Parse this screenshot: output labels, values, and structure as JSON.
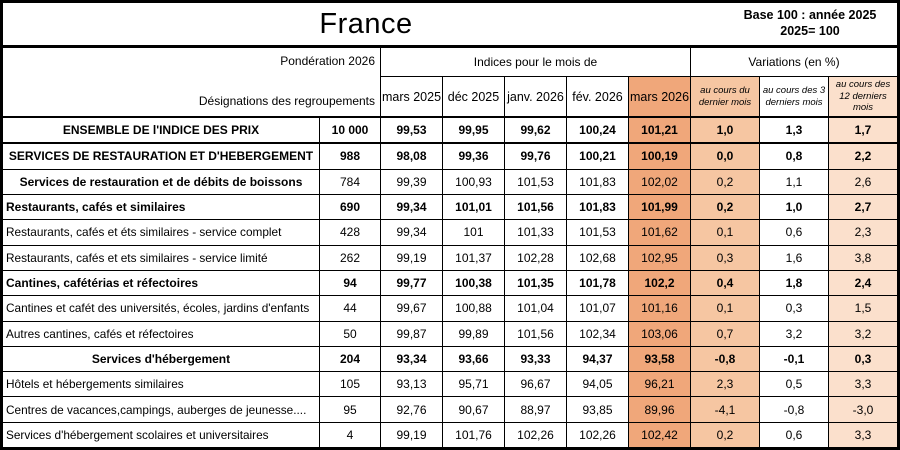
{
  "title": "France",
  "base_note": {
    "line1": "Base 100 : année 2025",
    "line2": "2025= 100"
  },
  "header": {
    "ponderation": "Pondération 2026",
    "designations": "Désignations des regroupements",
    "indices_group": "Indices pour le mois de",
    "variations_group": "Variations (en %)",
    "months": [
      "mars 2025",
      "déc 2025",
      "janv. 2026",
      "fév. 2026",
      "mars 2026"
    ],
    "variation_cols": [
      "au cours du dernier mois",
      "au cours des 3 derniers mois",
      "au cours des 12 derniers mois"
    ]
  },
  "colors": {
    "highlight_strong": "#F0A77A",
    "highlight_medium": "#F6C6A2",
    "highlight_light": "#FBE0CC"
  },
  "rows": [
    {
      "label": "ENSEMBLE DE l'INDICE DES PRIX",
      "pond": "10 000",
      "indices": [
        "99,53",
        "99,95",
        "99,62",
        "100,24",
        "101,21"
      ],
      "variations": [
        "1,0",
        "1,3",
        "1,7"
      ],
      "label_bold": true,
      "values_bold": true,
      "align": "center"
    },
    {
      "label": "SERVICES DE RESTAURATION ET D'HEBERGEMENT",
      "pond": "988",
      "indices": [
        "98,08",
        "99,36",
        "99,76",
        "100,21",
        "100,19"
      ],
      "variations": [
        "0,0",
        "0,8",
        "2,2"
      ],
      "label_bold": true,
      "values_bold": true,
      "align": "center"
    },
    {
      "label": "Services de restauration et de débits de boissons",
      "pond": "784",
      "indices": [
        "99,39",
        "100,93",
        "101,53",
        "101,83",
        "102,02"
      ],
      "variations": [
        "0,2",
        "1,1",
        "2,6"
      ],
      "label_bold": true,
      "values_bold": false,
      "align": "center"
    },
    {
      "label": "Restaurants, cafés et similaires",
      "pond": "690",
      "indices": [
        "99,34",
        "101,01",
        "101,56",
        "101,83",
        "101,99"
      ],
      "variations": [
        "0,2",
        "1,0",
        "2,7"
      ],
      "label_bold": true,
      "values_bold": true,
      "align": "left"
    },
    {
      "label": "Restaurants, cafés et éts similaires - service complet",
      "pond": "428",
      "indices": [
        "99,34",
        "101",
        "101,33",
        "101,53",
        "101,62"
      ],
      "variations": [
        "0,1",
        "0,6",
        "2,3"
      ],
      "label_bold": false,
      "values_bold": false,
      "align": "left"
    },
    {
      "label": "Restaurants, cafés et ets similaires - service limité",
      "pond": "262",
      "indices": [
        "99,19",
        "101,37",
        "102,28",
        "102,68",
        "102,95"
      ],
      "variations": [
        "0,3",
        "1,6",
        "3,8"
      ],
      "label_bold": false,
      "values_bold": false,
      "align": "left"
    },
    {
      "label": "Cantines, cafétérias et réfectoires",
      "pond": "94",
      "indices": [
        "99,77",
        "100,38",
        "101,35",
        "101,78",
        "102,2"
      ],
      "variations": [
        "0,4",
        "1,8",
        "2,4"
      ],
      "label_bold": true,
      "values_bold": true,
      "align": "left"
    },
    {
      "label": "Cantines et cafét des universités, écoles, jardins d'enfants",
      "pond": "44",
      "indices": [
        "99,67",
        "100,88",
        "101,04",
        "101,07",
        "101,16"
      ],
      "variations": [
        "0,1",
        "0,3",
        "1,5"
      ],
      "label_bold": false,
      "values_bold": false,
      "align": "left"
    },
    {
      "label": "Autres cantines, cafés et réfectoires",
      "pond": "50",
      "indices": [
        "99,87",
        "99,89",
        "101,56",
        "102,34",
        "103,06"
      ],
      "variations": [
        "0,7",
        "3,2",
        "3,2"
      ],
      "label_bold": false,
      "values_bold": false,
      "align": "left"
    },
    {
      "label": "Services d'hébergement",
      "pond": "204",
      "indices": [
        "93,34",
        "93,66",
        "93,33",
        "94,37",
        "93,58"
      ],
      "variations": [
        "-0,8",
        "-0,1",
        "0,3"
      ],
      "label_bold": true,
      "values_bold": true,
      "align": "center"
    },
    {
      "label": "Hôtels et hébergements similaires",
      "pond": "105",
      "indices": [
        "93,13",
        "95,71",
        "96,67",
        "94,05",
        "96,21"
      ],
      "variations": [
        "2,3",
        "0,5",
        "3,3"
      ],
      "label_bold": false,
      "values_bold": false,
      "align": "left"
    },
    {
      "label": "Centres de vacances,campings, auberges de jeunesse....",
      "pond": "95",
      "indices": [
        "92,76",
        "90,67",
        "88,97",
        "93,85",
        "89,96"
      ],
      "variations": [
        "-4,1",
        "-0,8",
        "-3,0"
      ],
      "label_bold": false,
      "values_bold": false,
      "align": "left"
    },
    {
      "label": "Services d'hébergement scolaires et universitaires",
      "pond": "4",
      "indices": [
        "99,19",
        "101,76",
        "102,26",
        "102,26",
        "102,42"
      ],
      "variations": [
        "0,2",
        "0,6",
        "3,3"
      ],
      "label_bold": false,
      "values_bold": false,
      "align": "left"
    }
  ]
}
